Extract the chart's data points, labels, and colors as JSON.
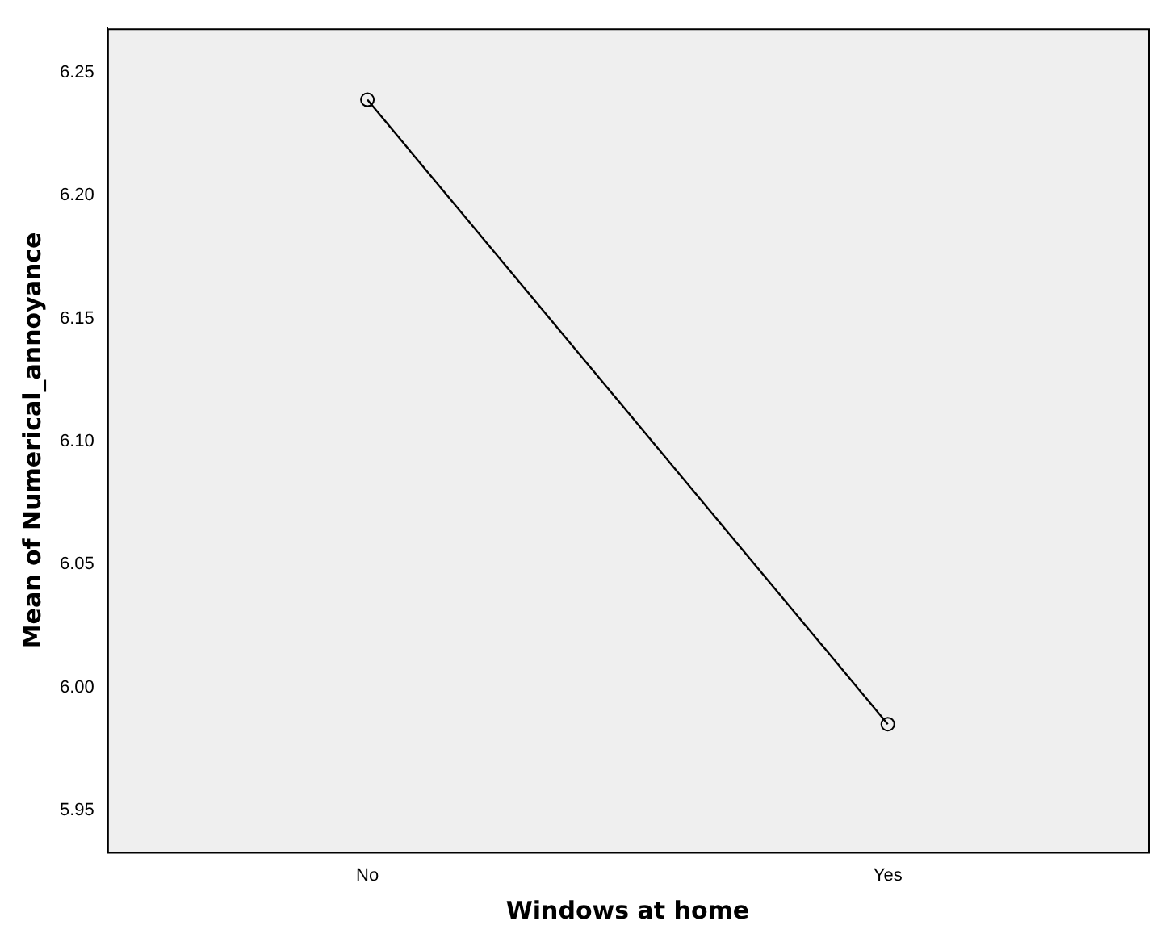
{
  "chart_data": {
    "type": "line",
    "xlabel": "Windows at home",
    "ylabel": "Mean of Numerical_annoyance",
    "categories": [
      "No",
      "Yes"
    ],
    "series": [
      {
        "color": "#000000",
        "values": [
          6.239,
          5.985
        ]
      }
    ],
    "ylim": [
      5.933,
      6.268
    ],
    "yticks": [
      {
        "value": 5.95,
        "label": "5.95"
      },
      {
        "value": 6.0,
        "label": "6.00"
      },
      {
        "value": 6.05,
        "label": "6.05"
      },
      {
        "value": 6.1,
        "label": "6.10"
      },
      {
        "value": 6.15,
        "label": "6.15"
      },
      {
        "value": 6.2,
        "label": "6.20"
      },
      {
        "value": 6.25,
        "label": "6.25"
      }
    ],
    "grid": false,
    "legend": false,
    "marker": "circle",
    "line_style": "solid"
  }
}
